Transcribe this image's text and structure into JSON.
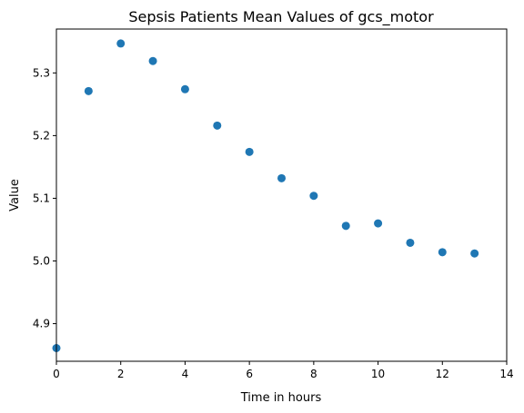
{
  "chart_data": {
    "type": "scatter",
    "title": "Sepsis Patients Mean Values of gcs_motor",
    "xlabel": "Time in hours",
    "ylabel": "Value",
    "xlim": [
      0,
      14
    ],
    "ylim": [
      4.84,
      5.37
    ],
    "xticks": [
      0,
      2,
      4,
      6,
      8,
      10,
      12,
      14
    ],
    "yticks": [
      4.9,
      5.0,
      5.1,
      5.2,
      5.3
    ],
    "xtick_labels": [
      "0",
      "2",
      "4",
      "6",
      "8",
      "10",
      "12",
      "14"
    ],
    "ytick_labels": [
      "4.9",
      "5.0",
      "5.1",
      "5.2",
      "5.3"
    ],
    "grid": false,
    "marker_color": "#1f77b4",
    "series": [
      {
        "x": [
          0,
          1,
          2,
          3,
          4,
          5,
          6,
          7,
          8,
          9,
          10,
          11,
          12,
          13
        ],
        "y": [
          4.861,
          5.271,
          5.347,
          5.319,
          5.274,
          5.216,
          5.174,
          5.132,
          5.104,
          5.056,
          5.06,
          5.029,
          5.014,
          5.012
        ]
      }
    ]
  }
}
